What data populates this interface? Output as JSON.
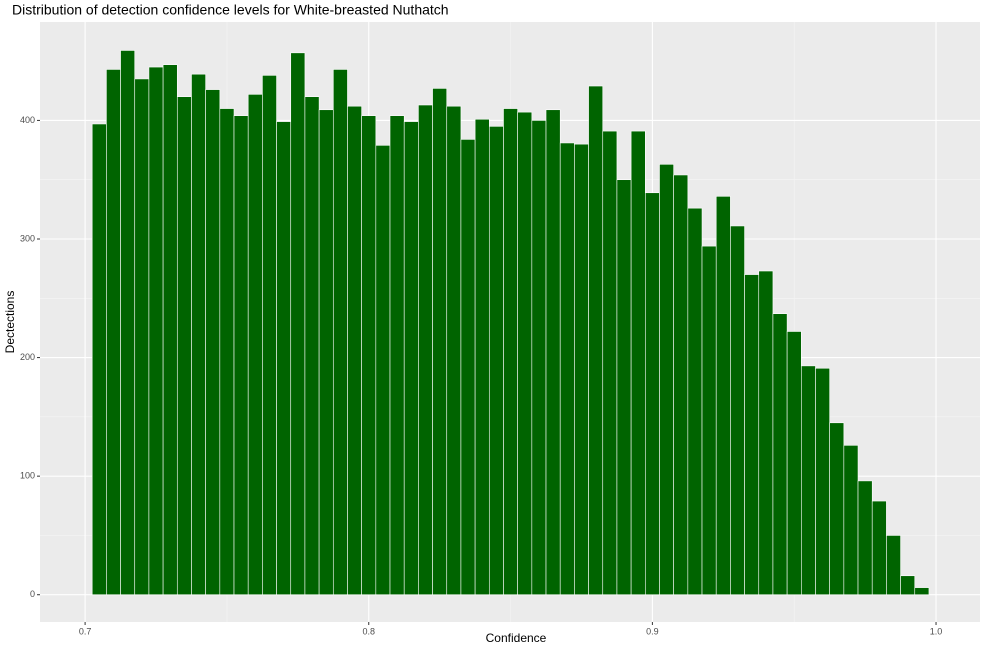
{
  "chart_data": {
    "type": "histogram",
    "title": "Distribution of detection confidence levels for White-breasted Nuthatch",
    "x_label": "Confidence",
    "y_label": "Dectections",
    "bins": [
      0.7025,
      0.7075,
      0.7125,
      0.7175,
      0.7225,
      0.7275,
      0.7325,
      0.7375,
      0.7425,
      0.7475,
      0.7525,
      0.7575,
      0.7625,
      0.7675,
      0.7725,
      0.7775,
      0.7825,
      0.7875,
      0.7925,
      0.7975,
      0.8025,
      0.8075,
      0.8125,
      0.8175,
      0.8225,
      0.8275,
      0.8325,
      0.8375,
      0.8425,
      0.8475,
      0.8525,
      0.8575,
      0.8625,
      0.8675,
      0.8725,
      0.8775,
      0.8825,
      0.8875,
      0.8925,
      0.8975,
      0.9025,
      0.9075,
      0.9125,
      0.9175,
      0.9225,
      0.9275,
      0.9325,
      0.9375,
      0.9425,
      0.9475,
      0.9525,
      0.9575,
      0.9625,
      0.9675,
      0.9725,
      0.9775,
      0.9825,
      0.9875,
      0.9925,
      0.9975
    ],
    "values": [
      397,
      443,
      459,
      435,
      445,
      447,
      420,
      439,
      426,
      410,
      404,
      422,
      438,
      399,
      457,
      420,
      409,
      443,
      412,
      404,
      379,
      404,
      399,
      413,
      427,
      412,
      384,
      401,
      395,
      410,
      407,
      400,
      409,
      381,
      380,
      429,
      391,
      350,
      391,
      339,
      363,
      354,
      326,
      294,
      336,
      311,
      270,
      273,
      237,
      222,
      193,
      191,
      145,
      126,
      96,
      79,
      50,
      16,
      6
    ],
    "color": "#006400",
    "xlim": [
      0.6841,
      1.0155
    ],
    "ylim": [
      -23,
      483
    ],
    "xticks": [
      0.7,
      0.8,
      0.9,
      {
        "value": 1,
        "label": "1.0"
      }
    ],
    "yticks": [
      0,
      100,
      200,
      300,
      400
    ],
    "grid": true
  }
}
